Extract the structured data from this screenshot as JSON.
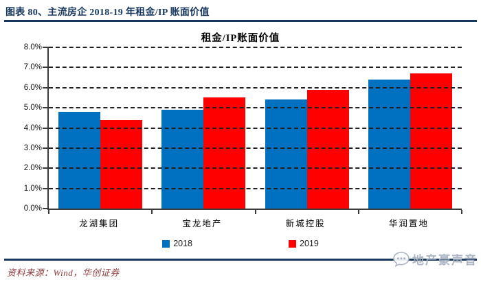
{
  "header": {
    "title": "图表 80、主流房企 2018-19 年租金/IP 账面价值"
  },
  "chart_data": {
    "type": "bar",
    "title": "租金/IP账面价值",
    "categories": [
      "龙湖集团",
      "宝龙地产",
      "新城控股",
      "华润置地"
    ],
    "series": [
      {
        "name": "2018",
        "color": "#0070C0",
        "values": [
          4.8,
          4.9,
          5.4,
          6.4
        ]
      },
      {
        "name": "2019",
        "color": "#FF0000",
        "values": [
          4.4,
          5.5,
          5.9,
          6.7
        ]
      }
    ],
    "ylabel": "",
    "xlabel": "",
    "ylim": [
      0,
      8
    ],
    "ytick_step": 1,
    "ytick_labels": [
      "0.0%",
      "1.0%",
      "2.0%",
      "3.0%",
      "4.0%",
      "5.0%",
      "6.0%",
      "7.0%",
      "8.0%"
    ],
    "grid": "horizontal-dashed",
    "legend_position": "bottom"
  },
  "footer": {
    "source": "资料来源：Wind，华创证券",
    "watermark_text": "地产豪声音"
  },
  "icons": {
    "watermark_icon": "chat-bubble-icon"
  },
  "colors": {
    "title_and_rules": "#17375E",
    "series_2018": "#0070C0",
    "series_2019": "#FF0000",
    "source_text": "#8F3B3B",
    "watermark": "#A4AFBE",
    "axis": "#3a3a3a"
  }
}
